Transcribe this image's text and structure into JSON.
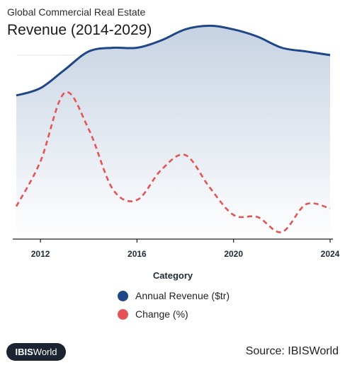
{
  "header": {
    "supertitle": "Global Commercial Real Estate",
    "title": "Revenue (2014-2029)"
  },
  "footer": {
    "logo_bold": "IBIS",
    "logo_rest": "World",
    "source": "Source: IBISWorld"
  },
  "legend": [
    {
      "label": "Annual Revenue ($tr)",
      "color": "#1d4787"
    },
    {
      "label": "Change (%)",
      "color": "#e45456"
    }
  ],
  "chart_data": {
    "type": "line",
    "xlabel": "Category",
    "ylabel": "",
    "grid": true,
    "x_ticks": [
      "2012",
      "2016",
      "2020",
      "2024"
    ],
    "xlim": [
      2011,
      2024
    ],
    "series": [
      {
        "name": "Annual Revenue ($tr)",
        "style": "solid-area",
        "color": "#1d4787",
        "x": [
          2011,
          2012,
          2013,
          2014,
          2015,
          2016,
          2017,
          2018,
          2019,
          2020,
          2021,
          2022,
          2023,
          2024
        ],
        "values": [
          3.9,
          4.1,
          4.6,
          5.1,
          5.2,
          5.2,
          5.4,
          5.7,
          5.8,
          5.7,
          5.5,
          5.2,
          5.1,
          5.0
        ]
      },
      {
        "name": "Change (%)",
        "style": "dashed",
        "color": "#e45456",
        "x": [
          2011,
          2012,
          2013,
          2014,
          2015,
          2016,
          2017,
          2018,
          2019,
          2020,
          2021,
          2022,
          2023,
          2024
        ],
        "values": [
          0.7,
          2.8,
          6.0,
          4.3,
          1.5,
          1.0,
          2.4,
          3.1,
          1.6,
          0.3,
          0.2,
          -0.5,
          0.8,
          0.6
        ]
      }
    ]
  }
}
